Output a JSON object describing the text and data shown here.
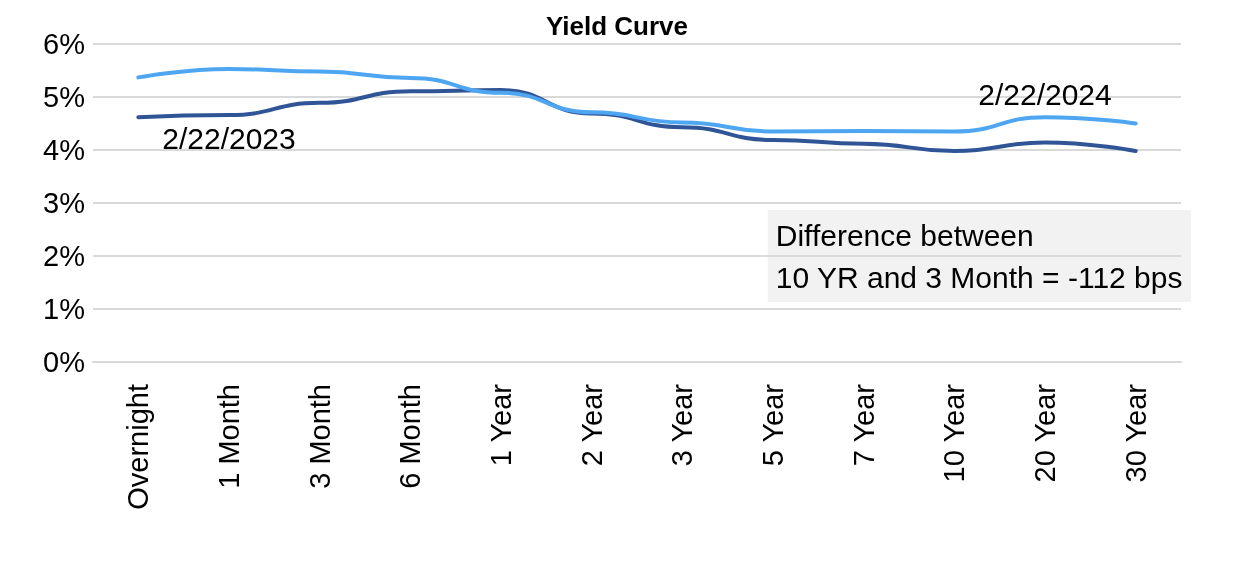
{
  "chart_data": {
    "type": "line",
    "title": "Yield Curve",
    "categories": [
      "Overnight",
      "1 Month",
      "3 Month",
      "6 Month",
      "1 Year",
      "2 Year",
      "3 Year",
      "5 Year",
      "7 Year",
      "10 Year",
      "20 Year",
      "30 Year"
    ],
    "series": [
      {
        "name": "2/22/2023",
        "color": "#2f5597",
        "values": [
          4.62,
          4.66,
          4.89,
          5.11,
          5.13,
          4.69,
          4.43,
          4.19,
          4.12,
          3.98,
          4.14,
          3.98
        ]
      },
      {
        "name": "2/22/2024",
        "color": "#4ea6f2",
        "values": [
          5.37,
          5.53,
          5.48,
          5.36,
          5.08,
          4.71,
          4.52,
          4.35,
          4.36,
          4.35,
          4.62,
          4.5
        ]
      }
    ],
    "ylim": [
      0,
      6
    ],
    "yticks": [
      {
        "value": 0,
        "label": "0%"
      },
      {
        "value": 1,
        "label": "1%"
      },
      {
        "value": 2,
        "label": "2%"
      },
      {
        "value": 3,
        "label": "3%"
      },
      {
        "value": 4,
        "label": "4%"
      },
      {
        "value": 5,
        "label": "5%"
      },
      {
        "value": 6,
        "label": "6%"
      }
    ],
    "grid": "y",
    "marker": "none",
    "line_style": "solid",
    "legend": false,
    "annotations": [
      "Difference between\n10 YR and 3 Month = -112 bps"
    ]
  }
}
